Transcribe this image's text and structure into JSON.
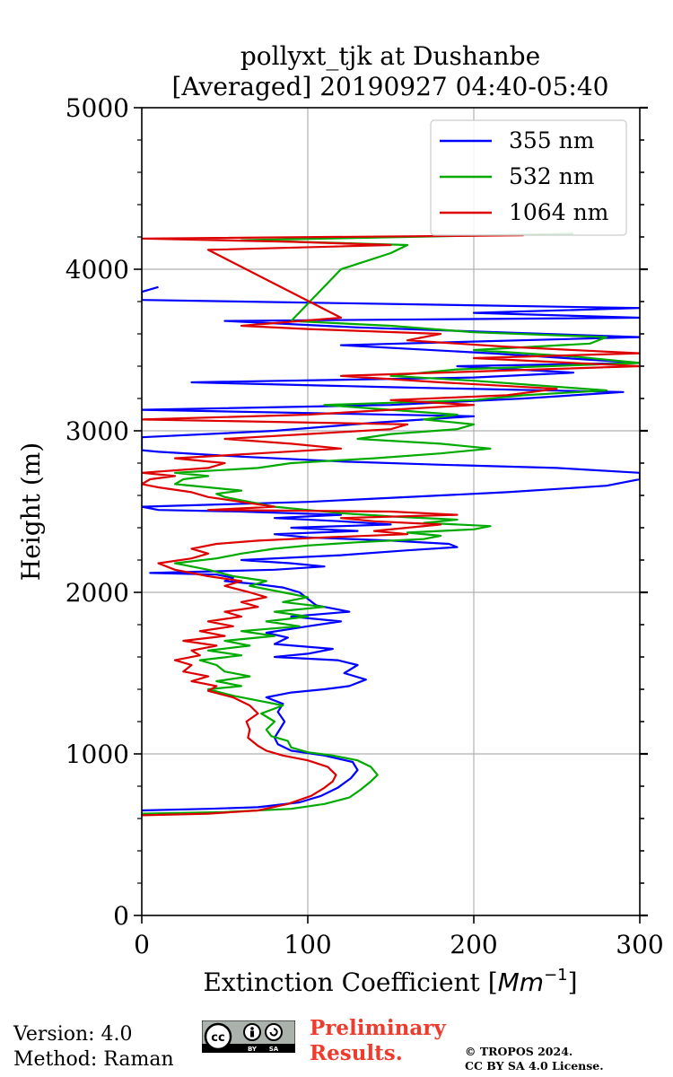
{
  "chart_data": {
    "type": "line",
    "title_line1": "pollyxt_tjk at Dushanbe",
    "title_line2": "[Averaged] 20190927 04:40-05:40",
    "xlabel": "Extinction Coefficient [Mm⁻¹]",
    "xlabel_main": "Extinction Coefficient [",
    "xlabel_unit": "Mm",
    "xlabel_exp": "−1",
    "xlabel_close": "]",
    "ylabel": "Height (m)",
    "xlim": [
      0,
      300
    ],
    "ylim": [
      0,
      5000
    ],
    "x_ticks": [
      0,
      100,
      200,
      300
    ],
    "x_tick_labels": [
      "0",
      "100",
      "200",
      "300"
    ],
    "y_ticks": [
      0,
      1000,
      2000,
      3000,
      4000,
      5000
    ],
    "y_tick_labels": [
      "0",
      "1000",
      "2000",
      "3000",
      "4000",
      "5000"
    ],
    "grid": true,
    "legend_position": "top-right",
    "series": [
      {
        "name": "355 nm",
        "color": "#0000ff",
        "points": [
          [
            0,
            650
          ],
          [
            40,
            660
          ],
          [
            70,
            670
          ],
          [
            95,
            700
          ],
          [
            108,
            740
          ],
          [
            118,
            790
          ],
          [
            126,
            850
          ],
          [
            130,
            900
          ],
          [
            127,
            950
          ],
          [
            110,
            990
          ],
          [
            90,
            1020
          ],
          [
            82,
            1060
          ],
          [
            80,
            1100
          ],
          [
            83,
            1150
          ],
          [
            86,
            1200
          ],
          [
            82,
            1260
          ],
          [
            85,
            1310
          ],
          [
            75,
            1350
          ],
          [
            90,
            1380
          ],
          [
            110,
            1400
          ],
          [
            125,
            1420
          ],
          [
            135,
            1460
          ],
          [
            122,
            1500
          ],
          [
            130,
            1550
          ],
          [
            118,
            1580
          ],
          [
            80,
            1600
          ],
          [
            100,
            1620
          ],
          [
            115,
            1650
          ],
          [
            80,
            1680
          ],
          [
            88,
            1720
          ],
          [
            75,
            1750
          ],
          [
            100,
            1790
          ],
          [
            120,
            1820
          ],
          [
            90,
            1850
          ],
          [
            125,
            1880
          ],
          [
            105,
            1920
          ],
          [
            100,
            1960
          ],
          [
            95,
            2000
          ],
          [
            85,
            2030
          ],
          [
            70,
            2050
          ],
          [
            50,
            2070
          ],
          [
            55,
            2090
          ],
          [
            45,
            2110
          ],
          [
            5,
            2120
          ],
          [
            80,
            2140
          ],
          [
            110,
            2160
          ],
          [
            90,
            2180
          ],
          [
            60,
            2200
          ],
          [
            120,
            2230
          ],
          [
            160,
            2260
          ],
          [
            190,
            2280
          ],
          [
            185,
            2300
          ],
          [
            150,
            2320
          ],
          [
            100,
            2340
          ],
          [
            80,
            2360
          ],
          [
            130,
            2380
          ],
          [
            90,
            2400
          ],
          [
            150,
            2420
          ],
          [
            120,
            2440
          ],
          [
            80,
            2460
          ],
          [
            120,
            2480
          ],
          [
            60,
            2500
          ],
          [
            10,
            2510
          ],
          [
            0,
            2530
          ],
          [
            50,
            2545
          ],
          [
            100,
            2560
          ],
          [
            140,
            2580
          ],
          [
            180,
            2600
          ],
          [
            220,
            2620
          ],
          [
            250,
            2640
          ],
          [
            280,
            2660
          ],
          [
            300,
            2700
          ],
          [
            300,
            2740
          ],
          [
            250,
            2770
          ],
          [
            180,
            2790
          ],
          [
            120,
            2810
          ],
          [
            60,
            2840
          ],
          [
            10,
            2870
          ],
          [
            0,
            2880
          ],
          [
            0,
            2960
          ],
          [
            80,
            3000
          ],
          [
            140,
            3050
          ],
          [
            200,
            3090
          ],
          [
            0,
            3130
          ],
          [
            150,
            3160
          ],
          [
            230,
            3200
          ],
          [
            290,
            3240
          ],
          [
            150,
            3270
          ],
          [
            30,
            3300
          ],
          [
            200,
            3330
          ],
          [
            260,
            3360
          ],
          [
            190,
            3400
          ],
          [
            300,
            3420
          ],
          [
            210,
            3480
          ],
          [
            120,
            3530
          ],
          [
            300,
            3580
          ],
          [
            130,
            3640
          ],
          [
            50,
            3680
          ],
          [
            300,
            3700
          ],
          [
            200,
            3730
          ],
          [
            300,
            3760
          ],
          [
            120,
            3790
          ],
          [
            0,
            3810
          ],
          [
            0,
            3860
          ],
          [
            10,
            3890
          ]
        ]
      },
      {
        "name": "532 nm",
        "color": "#00aa00",
        "points": [
          [
            0,
            630
          ],
          [
            50,
            640
          ],
          [
            90,
            660
          ],
          [
            110,
            690
          ],
          [
            125,
            730
          ],
          [
            132,
            780
          ],
          [
            138,
            830
          ],
          [
            142,
            870
          ],
          [
            138,
            920
          ],
          [
            130,
            960
          ],
          [
            115,
            990
          ],
          [
            100,
            1010
          ],
          [
            90,
            1040
          ],
          [
            88,
            1080
          ],
          [
            78,
            1110
          ],
          [
            75,
            1150
          ],
          [
            80,
            1200
          ],
          [
            72,
            1250
          ],
          [
            85,
            1300
          ],
          [
            70,
            1330
          ],
          [
            55,
            1360
          ],
          [
            40,
            1400
          ],
          [
            60,
            1420
          ],
          [
            45,
            1450
          ],
          [
            65,
            1480
          ],
          [
            50,
            1510
          ],
          [
            45,
            1550
          ],
          [
            35,
            1580
          ],
          [
            60,
            1610
          ],
          [
            40,
            1640
          ],
          [
            65,
            1670
          ],
          [
            50,
            1700
          ],
          [
            80,
            1730
          ],
          [
            60,
            1760
          ],
          [
            95,
            1790
          ],
          [
            75,
            1820
          ],
          [
            100,
            1850
          ],
          [
            80,
            1880
          ],
          [
            110,
            1910
          ],
          [
            85,
            1940
          ],
          [
            100,
            1970
          ],
          [
            85,
            2000
          ],
          [
            65,
            2040
          ],
          [
            75,
            2070
          ],
          [
            55,
            2100
          ],
          [
            40,
            2140
          ],
          [
            20,
            2180
          ],
          [
            45,
            2210
          ],
          [
            60,
            2240
          ],
          [
            80,
            2270
          ],
          [
            100,
            2290
          ],
          [
            130,
            2310
          ],
          [
            170,
            2330
          ],
          [
            180,
            2350
          ],
          [
            160,
            2370
          ],
          [
            200,
            2390
          ],
          [
            210,
            2410
          ],
          [
            170,
            2430
          ],
          [
            190,
            2450
          ],
          [
            150,
            2470
          ],
          [
            120,
            2490
          ],
          [
            100,
            2510
          ],
          [
            80,
            2530
          ],
          [
            70,
            2550
          ],
          [
            60,
            2570
          ],
          [
            50,
            2590
          ],
          [
            45,
            2610
          ],
          [
            60,
            2630
          ],
          [
            40,
            2650
          ],
          [
            20,
            2670
          ],
          [
            25,
            2700
          ],
          [
            40,
            2720
          ],
          [
            20,
            2740
          ],
          [
            70,
            2770
          ],
          [
            90,
            2800
          ],
          [
            140,
            2830
          ],
          [
            180,
            2860
          ],
          [
            210,
            2890
          ],
          [
            180,
            2920
          ],
          [
            130,
            2950
          ],
          [
            150,
            2980
          ],
          [
            190,
            3010
          ],
          [
            200,
            3040
          ],
          [
            170,
            3070
          ],
          [
            190,
            3100
          ],
          [
            150,
            3130
          ],
          [
            110,
            3160
          ],
          [
            200,
            3190
          ],
          [
            230,
            3220
          ],
          [
            280,
            3250
          ],
          [
            240,
            3280
          ],
          [
            200,
            3310
          ],
          [
            150,
            3340
          ],
          [
            190,
            3380
          ],
          [
            300,
            3420
          ],
          [
            260,
            3460
          ],
          [
            200,
            3500
          ],
          [
            270,
            3540
          ],
          [
            280,
            3580
          ],
          [
            200,
            3610
          ],
          [
            150,
            3650
          ],
          [
            90,
            3680
          ],
          [
            120,
            4000
          ],
          [
            150,
            4100
          ],
          [
            160,
            4150
          ],
          [
            60,
            4180
          ],
          [
            260,
            4220
          ]
        ]
      },
      {
        "name": "1064 nm",
        "color": "#dd0000",
        "points": [
          [
            0,
            620
          ],
          [
            40,
            630
          ],
          [
            70,
            650
          ],
          [
            88,
            690
          ],
          [
            102,
            740
          ],
          [
            110,
            790
          ],
          [
            115,
            830
          ],
          [
            117,
            870
          ],
          [
            112,
            920
          ],
          [
            100,
            960
          ],
          [
            85,
            990
          ],
          [
            75,
            1020
          ],
          [
            70,
            1050
          ],
          [
            64,
            1100
          ],
          [
            65,
            1150
          ],
          [
            63,
            1200
          ],
          [
            70,
            1250
          ],
          [
            65,
            1300
          ],
          [
            55,
            1350
          ],
          [
            40,
            1390
          ],
          [
            45,
            1420
          ],
          [
            30,
            1450
          ],
          [
            40,
            1480
          ],
          [
            25,
            1510
          ],
          [
            30,
            1550
          ],
          [
            20,
            1580
          ],
          [
            35,
            1610
          ],
          [
            30,
            1640
          ],
          [
            45,
            1670
          ],
          [
            25,
            1700
          ],
          [
            50,
            1730
          ],
          [
            35,
            1760
          ],
          [
            55,
            1790
          ],
          [
            40,
            1820
          ],
          [
            60,
            1850
          ],
          [
            50,
            1880
          ],
          [
            70,
            1910
          ],
          [
            60,
            1940
          ],
          [
            75,
            1970
          ],
          [
            65,
            2000
          ],
          [
            50,
            2040
          ],
          [
            60,
            2070
          ],
          [
            40,
            2100
          ],
          [
            20,
            2140
          ],
          [
            10,
            2180
          ],
          [
            30,
            2210
          ],
          [
            40,
            2240
          ],
          [
            30,
            2270
          ],
          [
            45,
            2300
          ],
          [
            70,
            2320
          ],
          [
            110,
            2340
          ],
          [
            160,
            2360
          ],
          [
            140,
            2380
          ],
          [
            160,
            2400
          ],
          [
            180,
            2420
          ],
          [
            140,
            2440
          ],
          [
            120,
            2460
          ],
          [
            190,
            2480
          ],
          [
            150,
            2500
          ],
          [
            40,
            2510
          ],
          [
            80,
            2530
          ],
          [
            60,
            2560
          ],
          [
            40,
            2590
          ],
          [
            30,
            2620
          ],
          [
            10,
            2650
          ],
          [
            0,
            2670
          ],
          [
            5,
            2700
          ],
          [
            20,
            2720
          ],
          [
            0,
            2740
          ],
          [
            40,
            2770
          ],
          [
            50,
            2800
          ],
          [
            20,
            2830
          ],
          [
            70,
            2860
          ],
          [
            120,
            2890
          ],
          [
            90,
            2920
          ],
          [
            50,
            2950
          ],
          [
            100,
            2980
          ],
          [
            150,
            3010
          ],
          [
            160,
            3040
          ],
          [
            0,
            3070
          ],
          [
            100,
            3100
          ],
          [
            150,
            3130
          ],
          [
            200,
            3160
          ],
          [
            150,
            3190
          ],
          [
            220,
            3220
          ],
          [
            250,
            3260
          ],
          [
            180,
            3300
          ],
          [
            120,
            3340
          ],
          [
            300,
            3400
          ],
          [
            200,
            3450
          ],
          [
            300,
            3480
          ],
          [
            220,
            3520
          ],
          [
            160,
            3560
          ],
          [
            180,
            3600
          ],
          [
            100,
            3630
          ],
          [
            60,
            3650
          ],
          [
            120,
            3700
          ],
          [
            40,
            4120
          ],
          [
            150,
            4150
          ],
          [
            90,
            4170
          ],
          [
            0,
            4190
          ],
          [
            230,
            4210
          ]
        ]
      }
    ]
  },
  "footer": {
    "version": "Version: 4.0",
    "method": "Method: Raman",
    "preliminary_line1": "Preliminary",
    "preliminary_line2": "Results.",
    "copyright_line1": "© TROPOS 2024.",
    "copyright_line2": "CC BY SA 4.0 License.",
    "license_badge": "cc-by-sa-badge",
    "badge_by": "BY",
    "badge_sa": "SA"
  }
}
